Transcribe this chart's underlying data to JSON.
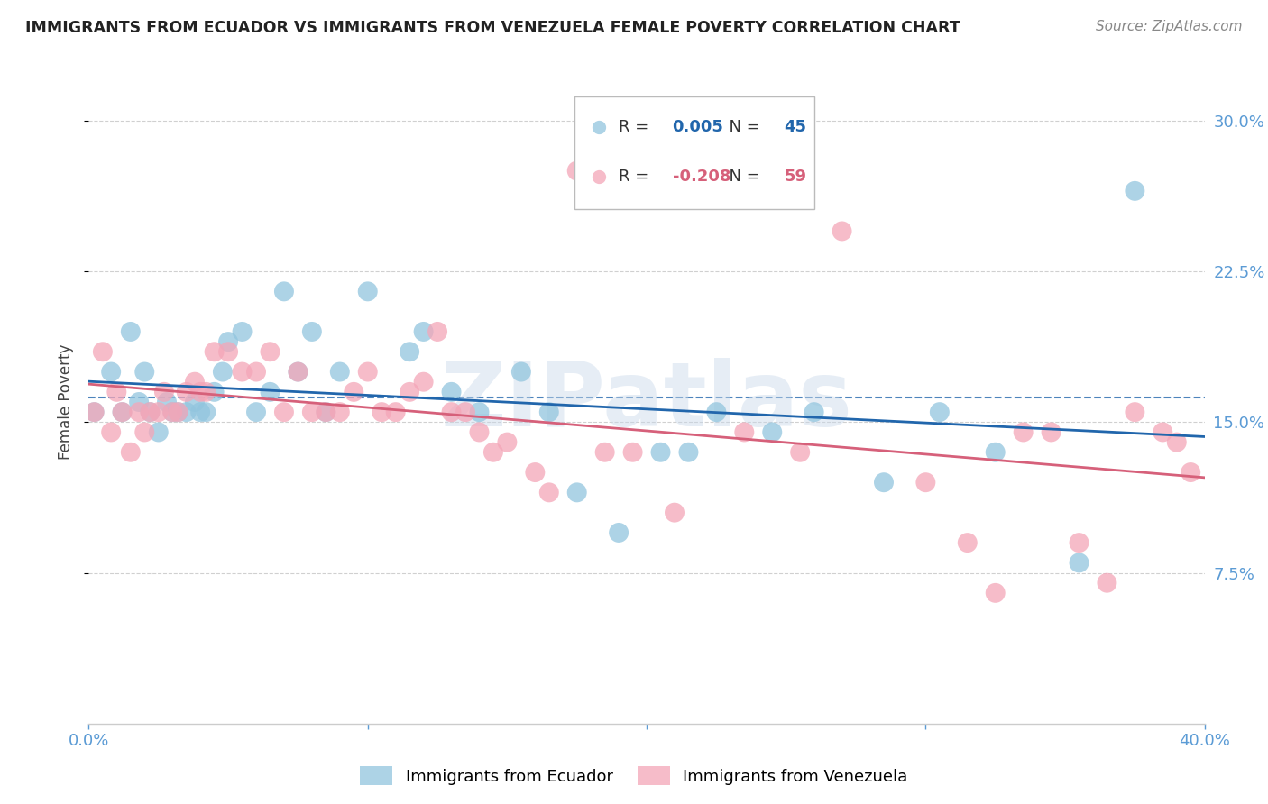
{
  "title": "IMMIGRANTS FROM ECUADOR VS IMMIGRANTS FROM VENEZUELA FEMALE POVERTY CORRELATION CHART",
  "source": "Source: ZipAtlas.com",
  "ylabel": "Female Poverty",
  "xlim": [
    0.0,
    0.4
  ],
  "ylim": [
    0.0,
    0.32
  ],
  "yticks": [
    0.075,
    0.15,
    0.225,
    0.3
  ],
  "yticklabels": [
    "7.5%",
    "15.0%",
    "22.5%",
    "30.0%"
  ],
  "ecuador_color": "#92c5de",
  "venezuela_color": "#f4a6b8",
  "ecuador_line_color": "#2166ac",
  "venezuela_line_color": "#d6607a",
  "R_ecuador": 0.005,
  "N_ecuador": 45,
  "R_venezuela": -0.208,
  "N_venezuela": 59,
  "ecuador_x": [
    0.002,
    0.008,
    0.012,
    0.015,
    0.018,
    0.02,
    0.022,
    0.025,
    0.028,
    0.03,
    0.032,
    0.035,
    0.038,
    0.04,
    0.042,
    0.045,
    0.048,
    0.05,
    0.055,
    0.06,
    0.065,
    0.07,
    0.075,
    0.08,
    0.085,
    0.09,
    0.1,
    0.115,
    0.12,
    0.13,
    0.14,
    0.155,
    0.165,
    0.175,
    0.19,
    0.205,
    0.215,
    0.225,
    0.245,
    0.26,
    0.285,
    0.305,
    0.325,
    0.355,
    0.375
  ],
  "ecuador_y": [
    0.155,
    0.175,
    0.155,
    0.195,
    0.16,
    0.175,
    0.155,
    0.145,
    0.16,
    0.155,
    0.155,
    0.155,
    0.16,
    0.155,
    0.155,
    0.165,
    0.175,
    0.19,
    0.195,
    0.155,
    0.165,
    0.215,
    0.175,
    0.195,
    0.155,
    0.175,
    0.215,
    0.185,
    0.195,
    0.165,
    0.155,
    0.175,
    0.155,
    0.115,
    0.095,
    0.135,
    0.135,
    0.155,
    0.145,
    0.155,
    0.12,
    0.155,
    0.135,
    0.08,
    0.265
  ],
  "venezuela_x": [
    0.002,
    0.005,
    0.008,
    0.01,
    0.012,
    0.015,
    0.018,
    0.02,
    0.022,
    0.025,
    0.027,
    0.03,
    0.032,
    0.035,
    0.038,
    0.04,
    0.042,
    0.045,
    0.05,
    0.055,
    0.06,
    0.065,
    0.07,
    0.075,
    0.08,
    0.085,
    0.09,
    0.095,
    0.1,
    0.105,
    0.11,
    0.115,
    0.12,
    0.125,
    0.13,
    0.135,
    0.14,
    0.145,
    0.15,
    0.16,
    0.165,
    0.175,
    0.185,
    0.195,
    0.21,
    0.235,
    0.255,
    0.27,
    0.3,
    0.315,
    0.325,
    0.335,
    0.345,
    0.355,
    0.365,
    0.375,
    0.385,
    0.39,
    0.395
  ],
  "venezuela_y": [
    0.155,
    0.185,
    0.145,
    0.165,
    0.155,
    0.135,
    0.155,
    0.145,
    0.155,
    0.155,
    0.165,
    0.155,
    0.155,
    0.165,
    0.17,
    0.165,
    0.165,
    0.185,
    0.185,
    0.175,
    0.175,
    0.185,
    0.155,
    0.175,
    0.155,
    0.155,
    0.155,
    0.165,
    0.175,
    0.155,
    0.155,
    0.165,
    0.17,
    0.195,
    0.155,
    0.155,
    0.145,
    0.135,
    0.14,
    0.125,
    0.115,
    0.275,
    0.135,
    0.135,
    0.105,
    0.145,
    0.135,
    0.245,
    0.12,
    0.09,
    0.065,
    0.145,
    0.145,
    0.09,
    0.07,
    0.155,
    0.145,
    0.14,
    0.125
  ],
  "watermark": "ZIPatlas",
  "background_color": "#ffffff",
  "grid_color": "#d0d0d0",
  "tick_color": "#5b9bd5"
}
